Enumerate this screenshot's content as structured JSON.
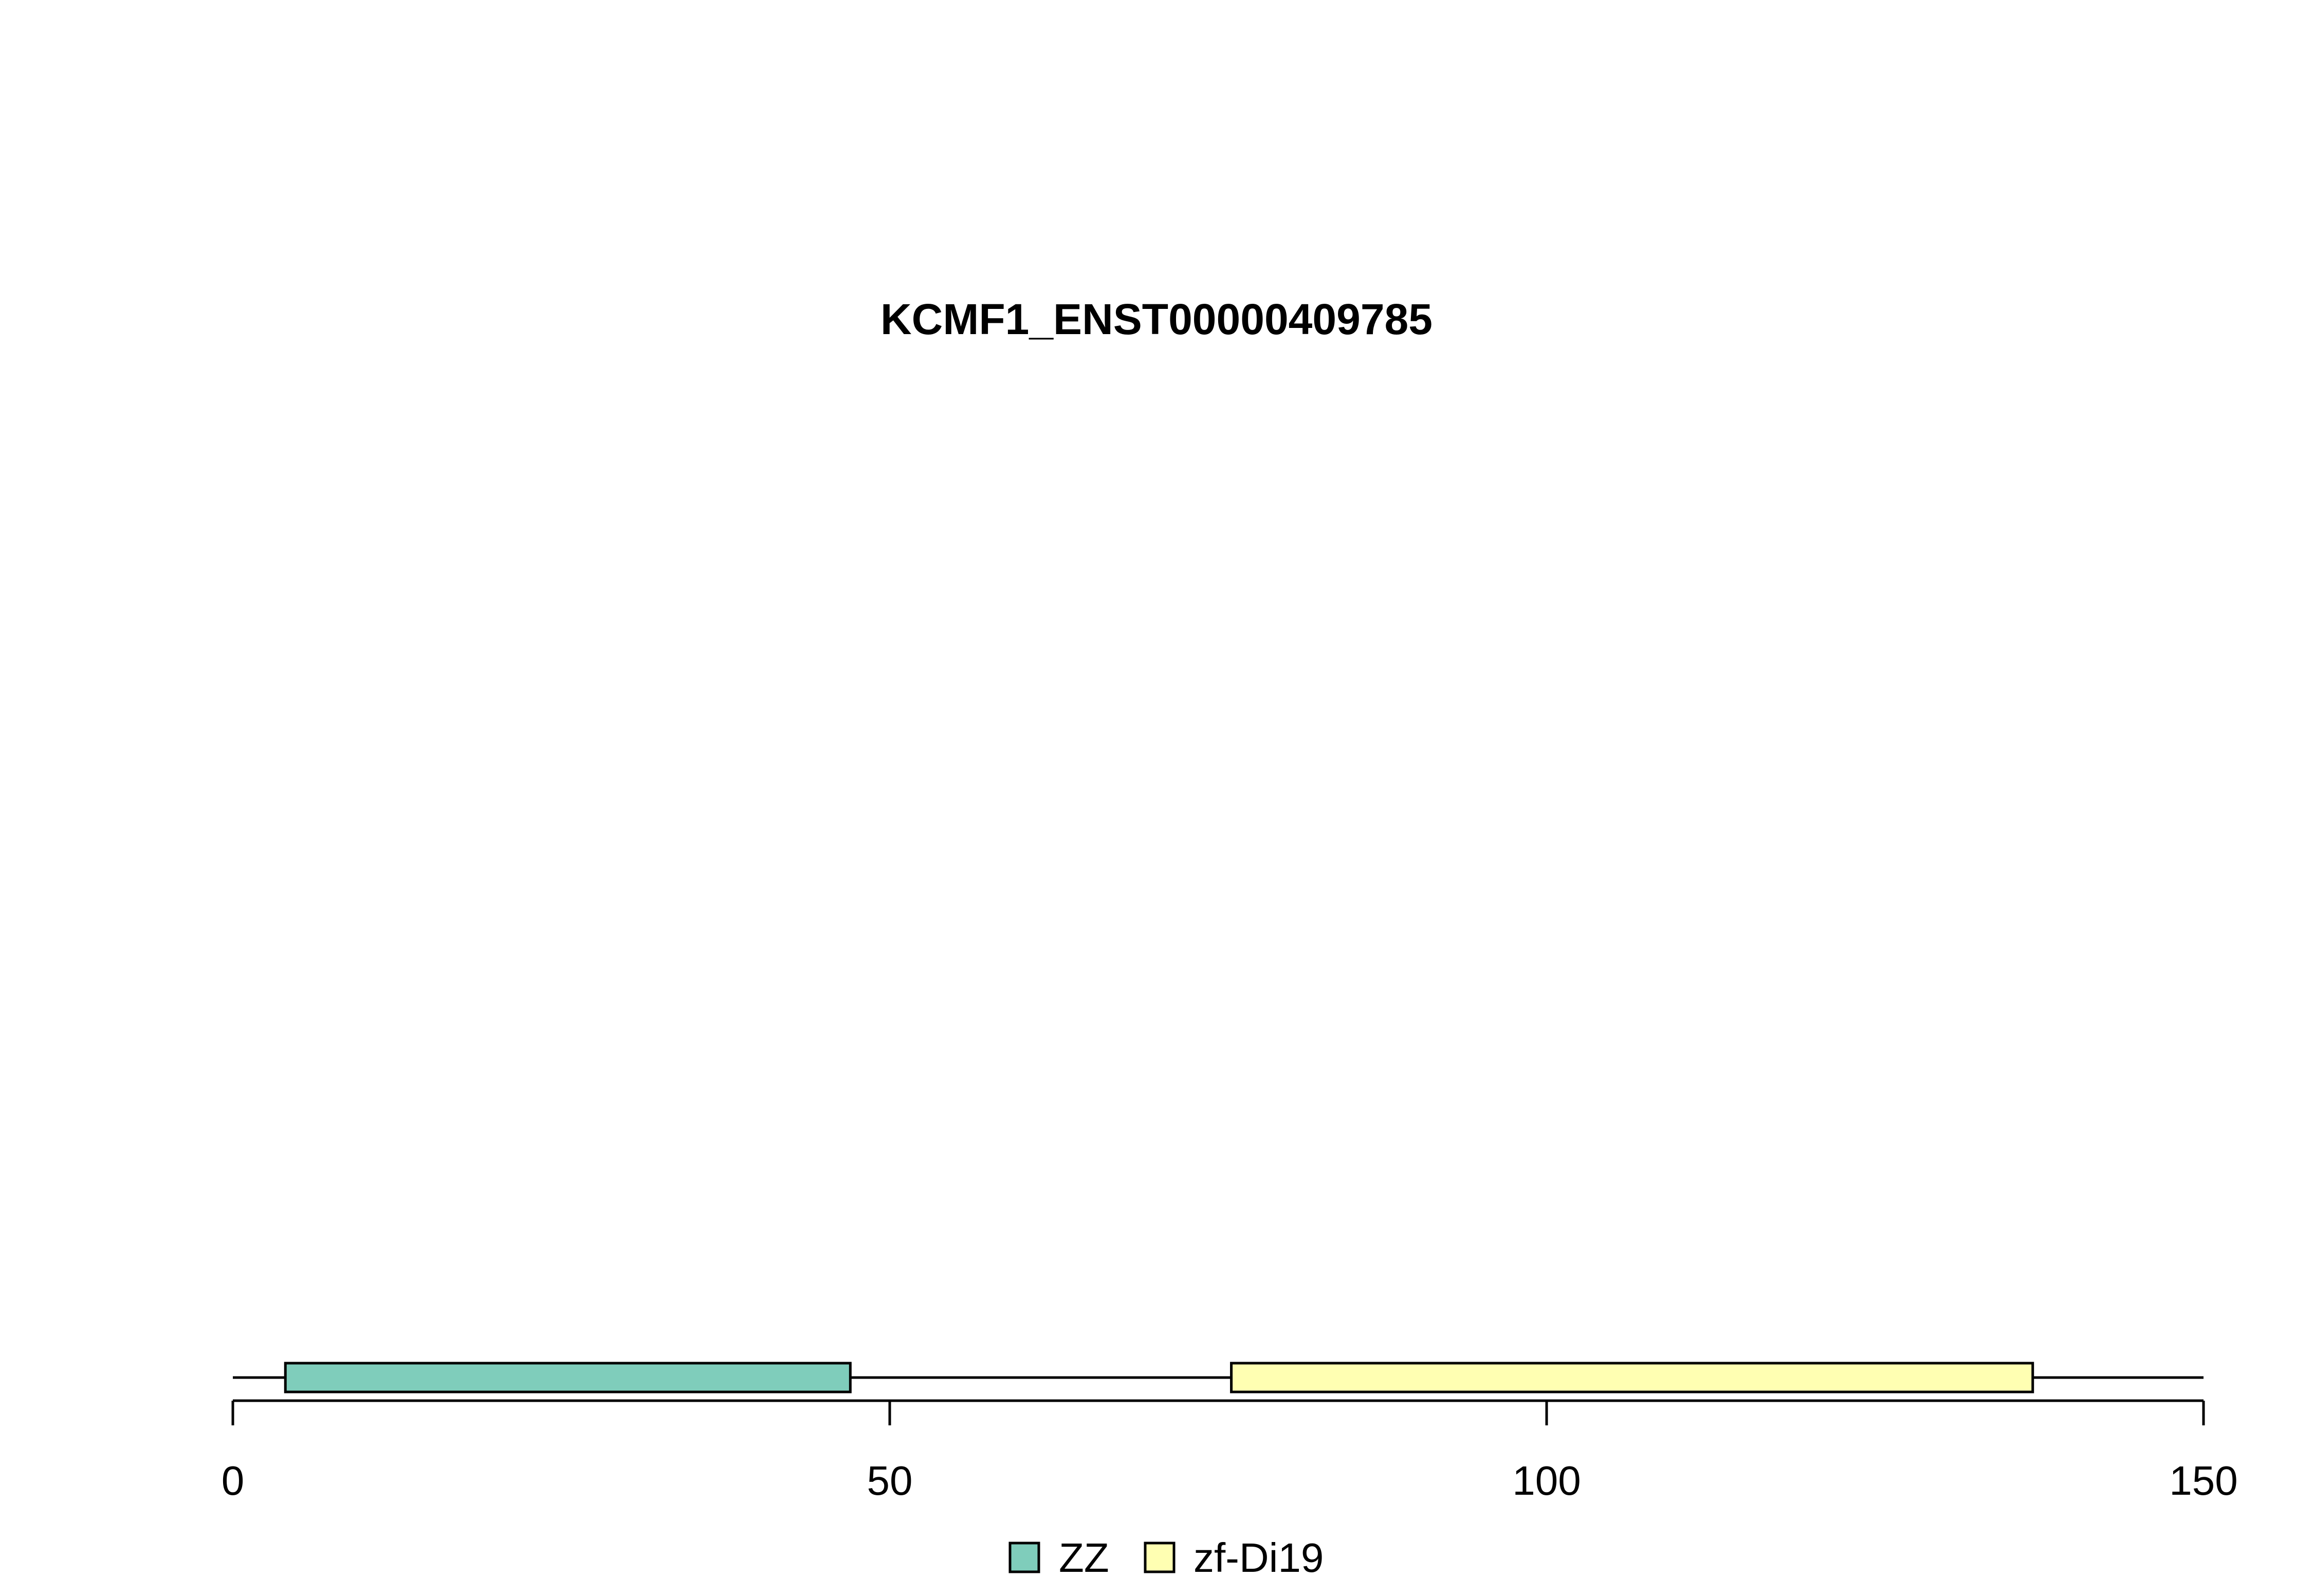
{
  "chart_data": {
    "type": "domain-map",
    "title": "KCMF1_ENST00000409785",
    "xlim": [
      0,
      150
    ],
    "ticks": [
      0,
      50,
      100,
      150
    ],
    "tick_labels": [
      "0",
      "50",
      "100",
      "150"
    ],
    "protein_length": 150,
    "domains": [
      {
        "name": "ZZ",
        "start": 4,
        "end": 47,
        "color": "#7fcdbb"
      },
      {
        "name": "zf-Di19",
        "start": 76,
        "end": 137,
        "color": "#ffffb2"
      }
    ],
    "legend": [
      {
        "label": "ZZ",
        "color": "#7fcdbb"
      },
      {
        "label": "zf-Di19",
        "color": "#ffffb2"
      }
    ],
    "legend_position": "bottom-center",
    "grid": false
  }
}
